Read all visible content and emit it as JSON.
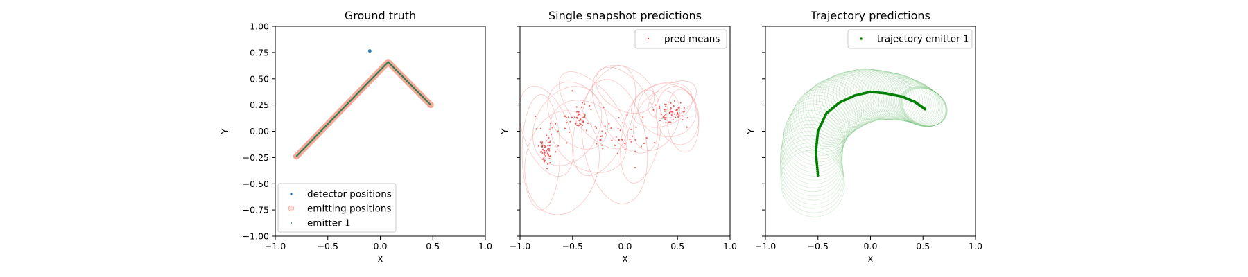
{
  "chart_data": [
    {
      "type": "scatter",
      "title": "Ground truth",
      "xlabel": "X",
      "ylabel": "Y",
      "xlim": [
        -1.0,
        1.0
      ],
      "ylim": [
        -1.0,
        1.0
      ],
      "xticks": [
        "−1.0",
        "−0.5",
        "0.0",
        "0.5",
        "1.0"
      ],
      "yticks": [
        "−1.00",
        "−0.75",
        "−0.50",
        "−0.25",
        "0.00",
        "0.25",
        "0.50",
        "0.75",
        "1.00"
      ],
      "legend_position": "lower-left",
      "series": [
        {
          "name": "detector positions",
          "color": "#1f77b4",
          "points": [
            [
              -0.1,
              0.765
            ]
          ]
        },
        {
          "name": "emitting positions",
          "color": "#f4a89a",
          "path": [
            [
              -0.8,
              -0.24
            ],
            [
              0.075,
              0.66
            ],
            [
              0.48,
              0.25
            ]
          ]
        },
        {
          "name": "emitter 1",
          "color": "#2f7d4f",
          "path": [
            [
              -0.8,
              -0.24
            ],
            [
              0.075,
              0.66
            ],
            [
              0.48,
              0.25
            ]
          ]
        }
      ]
    },
    {
      "type": "scatter",
      "title": "Single snapshot predictions",
      "xlabel": "X",
      "ylabel": "Y",
      "xlim": [
        -1.0,
        1.0
      ],
      "ylim": [
        -1.0,
        1.0
      ],
      "xticks": [
        "−1.0",
        "−0.5",
        "0.0",
        "0.5",
        "1.0"
      ],
      "legend_position": "upper-right",
      "series": [
        {
          "name": "pred means",
          "color": "#e03030",
          "clusters": [
            {
              "cx": -0.75,
              "cy": -0.15,
              "sx": 0.05,
              "sy": 0.1,
              "n": 55
            },
            {
              "cx": -0.45,
              "cy": 0.12,
              "sx": 0.1,
              "sy": 0.08,
              "n": 45
            },
            {
              "cx": -0.1,
              "cy": -0.05,
              "sx": 0.14,
              "sy": 0.1,
              "n": 28
            },
            {
              "cx": 0.45,
              "cy": 0.18,
              "sx": 0.08,
              "sy": 0.06,
              "n": 55
            },
            {
              "cx": 0.15,
              "cy": -0.1,
              "sx": 0.08,
              "sy": 0.1,
              "n": 10
            }
          ]
        }
      ],
      "uncertainty_ellipses": [
        {
          "cx": -0.8,
          "cy": -0.2,
          "rx": 0.18,
          "ry": 0.55,
          "angle": 0
        },
        {
          "cx": -0.75,
          "cy": 0.0,
          "rx": 0.22,
          "ry": 0.45,
          "angle": 20
        },
        {
          "cx": -0.55,
          "cy": 0.05,
          "rx": 0.3,
          "ry": 0.4,
          "angle": -30
        },
        {
          "cx": -0.45,
          "cy": 0.15,
          "rx": 0.25,
          "ry": 0.35,
          "angle": 35
        },
        {
          "cx": -0.3,
          "cy": 0.2,
          "rx": 0.2,
          "ry": 0.45,
          "angle": 40
        },
        {
          "cx": -0.2,
          "cy": 0.1,
          "rx": 0.25,
          "ry": 0.55,
          "angle": -20
        },
        {
          "cx": -0.1,
          "cy": -0.1,
          "rx": 0.3,
          "ry": 0.6,
          "angle": 10
        },
        {
          "cx": 0.0,
          "cy": 0.2,
          "rx": 0.25,
          "ry": 0.45,
          "angle": 30
        },
        {
          "cx": 0.15,
          "cy": -0.05,
          "rx": 0.18,
          "ry": 0.45,
          "angle": -10
        },
        {
          "cx": 0.35,
          "cy": 0.25,
          "rx": 0.3,
          "ry": 0.2,
          "angle": 20
        },
        {
          "cx": 0.4,
          "cy": 0.2,
          "rx": 0.28,
          "ry": 0.25,
          "angle": -15
        },
        {
          "cx": 0.5,
          "cy": 0.15,
          "rx": 0.2,
          "ry": 0.28,
          "angle": 10
        },
        {
          "cx": 0.45,
          "cy": 0.3,
          "rx": 0.25,
          "ry": 0.15,
          "angle": 30
        },
        {
          "cx": 0.3,
          "cy": 0.1,
          "rx": 0.2,
          "ry": 0.3,
          "angle": -25
        },
        {
          "cx": 0.55,
          "cy": 0.1,
          "rx": 0.15,
          "ry": 0.3,
          "angle": 5
        },
        {
          "cx": -0.6,
          "cy": -0.3,
          "rx": 0.35,
          "ry": 0.5,
          "angle": -10
        },
        {
          "cx": -0.35,
          "cy": -0.05,
          "rx": 0.3,
          "ry": 0.4,
          "angle": 50
        },
        {
          "cx": 0.0,
          "cy": 0.4,
          "rx": 0.2,
          "ry": 0.3,
          "angle": 60
        }
      ]
    },
    {
      "type": "scatter",
      "title": "Trajectory predictions",
      "xlabel": "X",
      "ylabel": "Y",
      "xlim": [
        -1.0,
        1.0
      ],
      "ylim": [
        -1.0,
        1.0
      ],
      "xticks": [
        "−1.0",
        "−0.5",
        "0.0",
        "0.5",
        "1.0"
      ],
      "legend_position": "upper-right",
      "series": [
        {
          "name": "trajectory emitter 1",
          "color": "#008000",
          "path": [
            [
              -0.5,
              -0.42
            ],
            [
              -0.52,
              -0.2
            ],
            [
              -0.5,
              0.0
            ],
            [
              -0.42,
              0.17
            ],
            [
              -0.3,
              0.27
            ],
            [
              -0.15,
              0.34
            ],
            [
              0.0,
              0.375
            ],
            [
              0.15,
              0.36
            ],
            [
              0.3,
              0.33
            ],
            [
              0.42,
              0.28
            ],
            [
              0.5,
              0.225
            ],
            [
              0.52,
              0.21
            ]
          ]
        }
      ]
    }
  ]
}
